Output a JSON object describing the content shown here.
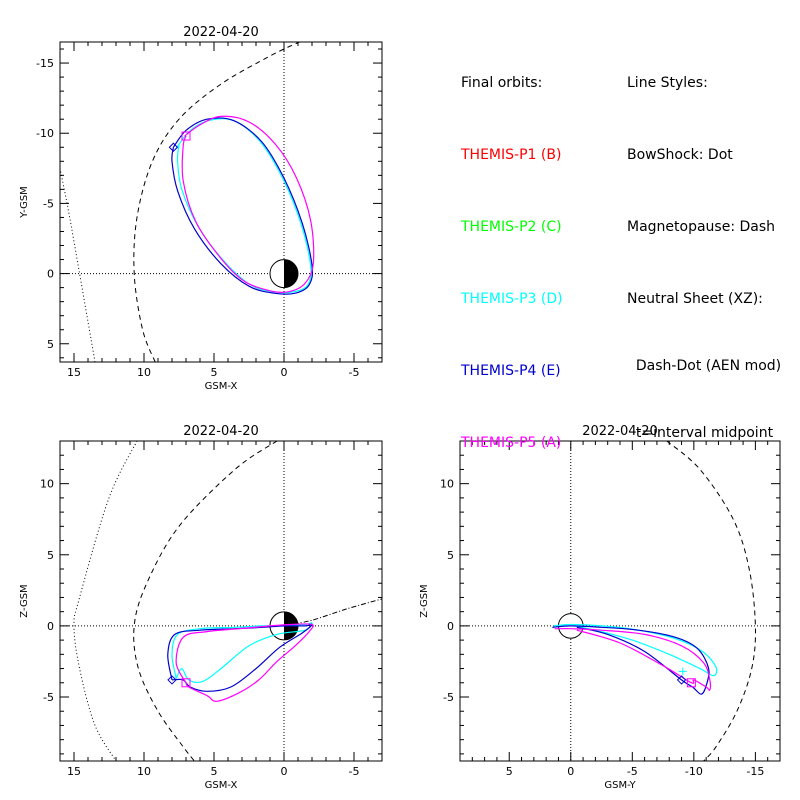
{
  "legend": {
    "orbits_title": "Final orbits:",
    "probes": [
      {
        "label": "THEMIS-P1 (B)",
        "color": "#ff0000"
      },
      {
        "label": "THEMIS-P2 (C)",
        "color": "#00ff00"
      },
      {
        "label": "THEMIS-P3 (D)",
        "color": "#00ffff"
      },
      {
        "label": "THEMIS-P4 (E)",
        "color": "#0000cc"
      },
      {
        "label": "THEMIS-P5 (A)",
        "color": "#ff00ff"
      }
    ],
    "styles_title": "Line Styles:",
    "styles": [
      "BowShock: Dot",
      "Magnetopause: Dash",
      "Neutral Sheet (XZ):",
      "  Dash-Dot (AEN mod)",
      "  t=interval midpoint"
    ]
  },
  "chart_data": [
    {
      "type": "line",
      "title": "2022-04-20",
      "xlabel": "GSM-X",
      "ylabel": "Y-GSM",
      "xlim": [
        16,
        -7
      ],
      "ylim": [
        6.3,
        -16.5
      ],
      "xticks": [
        15,
        10,
        5,
        0,
        -5
      ],
      "yticks": [
        5,
        0,
        -5,
        -10,
        -15
      ],
      "series": [
        {
          "name": "THEMIS-P3 (D)",
          "color": "#00ffff",
          "values": [
            [
              7.7,
              -8.9
            ],
            [
              6.8,
              -10.1
            ],
            [
              5.4,
              -10.9
            ],
            [
              3.6,
              -10.9
            ],
            [
              1.7,
              -9.4
            ],
            [
              0.1,
              -6.8
            ],
            [
              -1.2,
              -3.6
            ],
            [
              -1.9,
              -0.6
            ],
            [
              -1.7,
              0.8
            ],
            [
              -0.7,
              1.3
            ],
            [
              0.7,
              1.3
            ],
            [
              2.4,
              0.8
            ],
            [
              4.3,
              -0.9
            ],
            [
              6.1,
              -3.3
            ],
            [
              7.3,
              -6.0
            ],
            [
              7.6,
              -8.0
            ],
            [
              7.5,
              -9.2
            ]
          ]
        },
        {
          "name": "THEMIS-P4 (E)",
          "color": "#0000cc",
          "values": [
            [
              7.9,
              -9.0
            ],
            [
              7.0,
              -10.2
            ],
            [
              5.5,
              -11.0
            ],
            [
              3.6,
              -10.9
            ],
            [
              1.6,
              -9.4
            ],
            [
              0.0,
              -6.8
            ],
            [
              -1.3,
              -3.6
            ],
            [
              -2.0,
              -0.6
            ],
            [
              -1.8,
              0.8
            ],
            [
              -0.8,
              1.4
            ],
            [
              0.7,
              1.4
            ],
            [
              2.5,
              0.9
            ],
            [
              4.5,
              -0.7
            ],
            [
              6.4,
              -3.2
            ],
            [
              7.6,
              -5.9
            ],
            [
              8.0,
              -8.0
            ],
            [
              7.9,
              -9.0
            ]
          ]
        },
        {
          "name": "THEMIS-P5 (A)",
          "color": "#ff00ff",
          "values": [
            [
              7.1,
              -9.8
            ],
            [
              6.0,
              -10.6
            ],
            [
              4.5,
              -11.2
            ],
            [
              2.5,
              -10.8
            ],
            [
              0.6,
              -9.2
            ],
            [
              -0.9,
              -6.8
            ],
            [
              -1.9,
              -3.8
            ],
            [
              -2.1,
              -0.8
            ],
            [
              -1.5,
              0.7
            ],
            [
              -0.3,
              1.3
            ],
            [
              1.1,
              1.2
            ],
            [
              2.9,
              0.5
            ],
            [
              4.6,
              -1.2
            ],
            [
              6.3,
              -3.7
            ],
            [
              7.2,
              -6.6
            ],
            [
              7.2,
              -9.1
            ],
            [
              7.0,
              -9.8
            ]
          ]
        }
      ],
      "markers": [
        {
          "shape": "diamond",
          "color": "#0000cc",
          "x": 7.9,
          "y": -9.0
        },
        {
          "shape": "square",
          "color": "#ff00ff",
          "x": 7.0,
          "y": -9.8
        }
      ],
      "bow_shock": [
        [
          13.5,
          6.3
        ],
        [
          13.9,
          4.0
        ],
        [
          14.6,
          0
        ],
        [
          15.4,
          -4.5
        ],
        [
          16.0,
          -7.5
        ]
      ],
      "magnetopause": [
        [
          9.2,
          6.3
        ],
        [
          10.1,
          4.0
        ],
        [
          10.7,
          0
        ],
        [
          10.5,
          -4.0
        ],
        [
          9.4,
          -8.0
        ],
        [
          7.5,
          -11.0
        ],
        [
          4.5,
          -13.5
        ],
        [
          1.0,
          -15.5
        ],
        [
          -1.1,
          -16.5
        ]
      ],
      "grid": false
    },
    {
      "type": "line",
      "title": "2022-04-20",
      "xlabel": "GSM-X",
      "ylabel": "Z-GSM",
      "xlim": [
        16,
        -7
      ],
      "ylim": [
        -9.5,
        13
      ],
      "xticks": [
        15,
        10,
        5,
        0,
        -5
      ],
      "yticks": [
        10,
        5,
        0,
        -5
      ],
      "series": [
        {
          "name": "THEMIS-P3 (D)",
          "color": "#00ffff",
          "values": [
            [
              7.7,
              -3.7
            ],
            [
              8.0,
              -2.0
            ],
            [
              7.6,
              -0.6
            ],
            [
              6.0,
              -0.2
            ],
            [
              3.5,
              -0.1
            ],
            [
              1.5,
              0.0
            ],
            [
              0,
              0.0
            ],
            [
              -1.5,
              0.1
            ],
            [
              -2.0,
              0.2
            ],
            [
              -1.5,
              -0.3
            ],
            [
              0.5,
              -0.6
            ],
            [
              2.5,
              -1.4
            ],
            [
              4.5,
              -3.0
            ],
            [
              5.8,
              -3.9
            ],
            [
              6.8,
              -3.8
            ],
            [
              7.3,
              -3.0
            ],
            [
              7.7,
              -3.7
            ]
          ]
        },
        {
          "name": "THEMIS-P4 (E)",
          "color": "#0000cc",
          "values": [
            [
              8.0,
              -3.8
            ],
            [
              8.3,
              -2.0
            ],
            [
              7.8,
              -0.6
            ],
            [
              6.0,
              -0.3
            ],
            [
              3.5,
              -0.2
            ],
            [
              1.5,
              -0.1
            ],
            [
              0,
              0.0
            ],
            [
              -1.5,
              0.0
            ],
            [
              -2.0,
              0.1
            ],
            [
              -1.3,
              -0.5
            ],
            [
              0.3,
              -1.5
            ],
            [
              2.0,
              -3.0
            ],
            [
              3.8,
              -4.3
            ],
            [
              5.5,
              -4.6
            ],
            [
              6.7,
              -4.3
            ],
            [
              7.2,
              -3.8
            ],
            [
              8.0,
              -3.8
            ]
          ]
        },
        {
          "name": "THEMIS-P5 (A)",
          "color": "#ff00ff",
          "values": [
            [
              7.0,
              -4.0
            ],
            [
              7.7,
              -2.6
            ],
            [
              7.2,
              -0.8
            ],
            [
              5.5,
              -0.4
            ],
            [
              3.2,
              -0.2
            ],
            [
              1.0,
              0.0
            ],
            [
              -0.5,
              0.1
            ],
            [
              -2.0,
              0.1
            ],
            [
              -1.8,
              -0.4
            ],
            [
              -0.8,
              -1.4
            ],
            [
              0.5,
              -2.5
            ],
            [
              1.8,
              -3.8
            ],
            [
              3.2,
              -4.7
            ],
            [
              4.8,
              -5.3
            ],
            [
              5.5,
              -4.9
            ],
            [
              6.8,
              -4.3
            ],
            [
              7.0,
              -4.0
            ]
          ]
        }
      ],
      "markers": [
        {
          "shape": "diamond",
          "color": "#0000cc",
          "x": 8.0,
          "y": -3.8
        },
        {
          "shape": "square",
          "color": "#ff00ff",
          "x": 7.0,
          "y": -4.0
        }
      ],
      "bow_shock": [
        [
          10.5,
          13
        ],
        [
          12.5,
          9.0
        ],
        [
          14.6,
          2.0
        ],
        [
          15.0,
          0
        ],
        [
          14.6,
          -3.0
        ],
        [
          13.5,
          -7.0
        ],
        [
          12.0,
          -9.5
        ]
      ],
      "magnetopause": [
        [
          0.5,
          13
        ],
        [
          3.5,
          11.0
        ],
        [
          7.5,
          7.0
        ],
        [
          9.8,
          3.0
        ],
        [
          10.7,
          0
        ],
        [
          10.4,
          -3.0
        ],
        [
          9.0,
          -6.0
        ],
        [
          7.2,
          -8.5
        ],
        [
          6.4,
          -9.5
        ]
      ],
      "neutral_sheet": [
        [
          0,
          0
        ],
        [
          -2.0,
          0.4
        ],
        [
          -4.5,
          1.2
        ],
        [
          -7.0,
          1.9
        ]
      ],
      "grid": false
    },
    {
      "type": "line",
      "title": "2022-04-20",
      "xlabel": "GSM-Y",
      "ylabel": "Z-GSM",
      "xlim": [
        9,
        -17
      ],
      "ylim": [
        -9.5,
        13
      ],
      "xticks": [
        5,
        0,
        -5,
        -10,
        -15
      ],
      "yticks": [
        10,
        5,
        0,
        -5
      ],
      "series": [
        {
          "name": "THEMIS-P3 (D)",
          "color": "#00ffff",
          "values": [
            [
              1.4,
              0.0
            ],
            [
              0.0,
              0.1
            ],
            [
              -2.5,
              0.0
            ],
            [
              -5.5,
              -0.3
            ],
            [
              -8.5,
              -0.9
            ],
            [
              -10.7,
              -1.8
            ],
            [
              -11.8,
              -2.9
            ],
            [
              -11.6,
              -3.5
            ],
            [
              -10.5,
              -3.0
            ],
            [
              -8.0,
              -2.0
            ],
            [
              -5.0,
              -1.0
            ],
            [
              -2.0,
              -0.3
            ],
            [
              -0.3,
              0.0
            ]
          ]
        },
        {
          "name": "THEMIS-P4 (E)",
          "color": "#0000cc",
          "values": [
            [
              1.5,
              -0.1
            ],
            [
              0.0,
              0.0
            ],
            [
              -2.5,
              -0.1
            ],
            [
              -5.5,
              -0.3
            ],
            [
              -8.5,
              -0.8
            ],
            [
              -10.3,
              -1.6
            ],
            [
              -11.2,
              -3.0
            ],
            [
              -11.0,
              -4.2
            ],
            [
              -10.6,
              -4.8
            ],
            [
              -9.9,
              -4.3
            ],
            [
              -9.0,
              -3.8
            ],
            [
              -6.0,
              -1.8
            ],
            [
              -3.0,
              -0.6
            ],
            [
              -0.5,
              -0.1
            ]
          ]
        },
        {
          "name": "THEMIS-P5 (A)",
          "color": "#ff00ff",
          "values": [
            [
              1.3,
              -0.2
            ],
            [
              0.0,
              -0.2
            ],
            [
              -2.5,
              -0.3
            ],
            [
              -6.0,
              -0.6
            ],
            [
              -9.0,
              -1.4
            ],
            [
              -10.8,
              -2.6
            ],
            [
              -11.3,
              -3.8
            ],
            [
              -11.3,
              -4.5
            ],
            [
              -11.0,
              -4.3
            ],
            [
              -10.0,
              -3.8
            ],
            [
              -9.8,
              -4.0
            ],
            [
              -7.5,
              -2.8
            ],
            [
              -4.0,
              -1.2
            ],
            [
              -0.5,
              -0.3
            ]
          ]
        }
      ],
      "markers": [
        {
          "shape": "diamond",
          "color": "#0000cc",
          "x": -9.0,
          "y": -3.8
        },
        {
          "shape": "square",
          "color": "#ff00ff",
          "x": -9.8,
          "y": -4.0
        },
        {
          "shape": "plus",
          "color": "#00ffff",
          "x": -9.1,
          "y": -3.2
        }
      ],
      "magnetopause": [
        [
          -7.8,
          13
        ],
        [
          -10.5,
          11.0
        ],
        [
          -13.2,
          7.5
        ],
        [
          -14.5,
          4.0
        ],
        [
          -15.0,
          0
        ],
        [
          -14.7,
          -3.0
        ],
        [
          -13.5,
          -6.0
        ],
        [
          -11.8,
          -8.5
        ],
        [
          -10.8,
          -9.5
        ]
      ],
      "grid": false
    }
  ]
}
